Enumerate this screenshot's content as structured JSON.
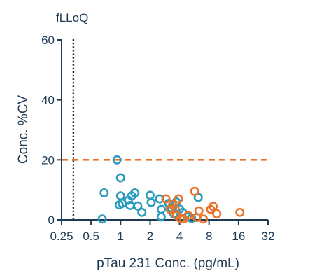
{
  "chart_data": {
    "type": "scatter",
    "title": "",
    "xlabel": "pTau 231 Conc. (pg/mL)",
    "ylabel": "Conc. %CV",
    "x_scale": "log2",
    "xlim": [
      0.25,
      32
    ],
    "ylim": [
      0,
      60
    ],
    "x_ticks": [
      0.25,
      0.5,
      1,
      2,
      4,
      8,
      16,
      32
    ],
    "x_tick_labels": [
      "0.25",
      "0.5",
      "1",
      "2",
      "4",
      "8",
      "16",
      "32"
    ],
    "y_ticks": [
      0,
      20,
      40,
      60
    ],
    "y_tick_labels": [
      "0",
      "20",
      "40",
      "60"
    ],
    "grid": false,
    "legend": "none",
    "reference_lines": [
      {
        "orientation": "vertical",
        "x": 0.33,
        "style": "dotted",
        "color": "#1f3a55",
        "label": "fLLoQ"
      },
      {
        "orientation": "horizontal",
        "y": 20,
        "style": "dashed",
        "color": "#e8732b",
        "label": ""
      }
    ],
    "series": [
      {
        "color": "#2a9bbd",
        "points": [
          {
            "x": 0.65,
            "y": 0.3
          },
          {
            "x": 0.68,
            "y": 9
          },
          {
            "x": 0.92,
            "y": 20
          },
          {
            "x": 0.97,
            "y": 5
          },
          {
            "x": 1.0,
            "y": 14
          },
          {
            "x": 1.0,
            "y": 8
          },
          {
            "x": 1.04,
            "y": 5.5
          },
          {
            "x": 1.2,
            "y": 6.5
          },
          {
            "x": 1.25,
            "y": 4.8
          },
          {
            "x": 1.3,
            "y": 8
          },
          {
            "x": 1.4,
            "y": 9
          },
          {
            "x": 1.5,
            "y": 4.6
          },
          {
            "x": 1.65,
            "y": 2.5
          },
          {
            "x": 2.0,
            "y": 8.2
          },
          {
            "x": 2.05,
            "y": 5.8
          },
          {
            "x": 2.5,
            "y": 7
          },
          {
            "x": 2.6,
            "y": 3.5
          },
          {
            "x": 2.6,
            "y": 1
          },
          {
            "x": 3.1,
            "y": 5.5
          },
          {
            "x": 3.3,
            "y": 4
          },
          {
            "x": 3.5,
            "y": 2
          },
          {
            "x": 3.7,
            "y": 6
          },
          {
            "x": 4.0,
            "y": 3.6
          },
          {
            "x": 4.3,
            "y": 2.5
          },
          {
            "x": 4.8,
            "y": 1
          },
          {
            "x": 5.3,
            "y": 0.5
          },
          {
            "x": 6.2,
            "y": 7.5
          }
        ]
      },
      {
        "color": "#e8732b",
        "points": [
          {
            "x": 2.9,
            "y": 7
          },
          {
            "x": 3.2,
            "y": 3.5
          },
          {
            "x": 3.4,
            "y": 5
          },
          {
            "x": 3.6,
            "y": 3.8
          },
          {
            "x": 3.7,
            "y": 1.5
          },
          {
            "x": 3.9,
            "y": 7
          },
          {
            "x": 4.1,
            "y": 0.5
          },
          {
            "x": 4.4,
            "y": 0.3
          },
          {
            "x": 4.9,
            "y": 1.5
          },
          {
            "x": 5.7,
            "y": 9.5
          },
          {
            "x": 6.0,
            "y": 0.8
          },
          {
            "x": 6.3,
            "y": 3
          },
          {
            "x": 7.0,
            "y": 0.3
          },
          {
            "x": 8.3,
            "y": 3.5
          },
          {
            "x": 8.8,
            "y": 4.5
          },
          {
            "x": 9.6,
            "y": 2
          },
          {
            "x": 16.5,
            "y": 2.5
          }
        ]
      }
    ]
  }
}
